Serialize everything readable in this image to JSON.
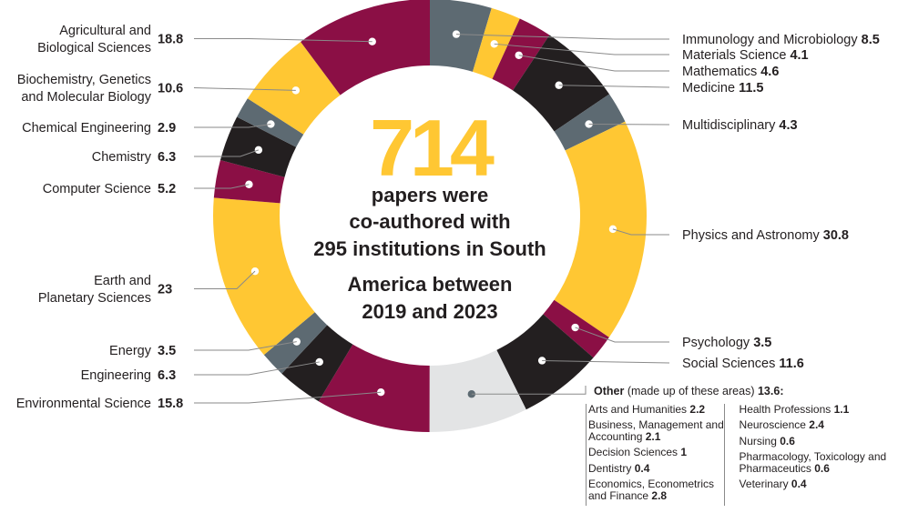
{
  "center": {
    "number": "714",
    "lines": [
      "papers were",
      "co-authored with",
      "295 institutions in South",
      "America between",
      "2019 and 2023"
    ]
  },
  "colors": {
    "maroon": "#8b0f45",
    "yellow": "#ffc733",
    "black": "#231f20",
    "gray": "#5d6a72",
    "light": "#e3e4e5"
  },
  "chart_data": {
    "type": "pie",
    "variant": "donut",
    "unit": "",
    "slices": [
      {
        "name": "Immunology and Microbiology",
        "value": 8.5,
        "color": "gray"
      },
      {
        "name": "Materials Science",
        "value": 4.1,
        "color": "yellow"
      },
      {
        "name": "Mathematics",
        "value": 4.6,
        "color": "maroon"
      },
      {
        "name": "Medicine",
        "value": 11.5,
        "color": "black"
      },
      {
        "name": "Multidisciplinary",
        "value": 4.3,
        "color": "gray"
      },
      {
        "name": "Physics and Astronomy",
        "value": 30.8,
        "color": "yellow"
      },
      {
        "name": "Psychology",
        "value": 3.5,
        "color": "maroon"
      },
      {
        "name": "Social Sciences",
        "value": 11.6,
        "color": "black"
      },
      {
        "name": "Other",
        "value": 13.6,
        "color": "light"
      },
      {
        "name": "Environmental Science",
        "value": 15.8,
        "color": "maroon"
      },
      {
        "name": "Engineering",
        "value": 6.3,
        "color": "black"
      },
      {
        "name": "Energy",
        "value": 3.5,
        "color": "gray"
      },
      {
        "name": "Earth and Planetary Sciences",
        "value": 23,
        "color": "yellow"
      },
      {
        "name": "Computer Science",
        "value": 5.2,
        "color": "maroon"
      },
      {
        "name": "Chemistry",
        "value": 6.3,
        "color": "black"
      },
      {
        "name": "Chemical Engineering",
        "value": 2.9,
        "color": "gray"
      },
      {
        "name": "Biochemistry, Genetics and Molecular Biology",
        "value": 10.6,
        "color": "yellow"
      },
      {
        "name": "Agricultural and Biological Sciences",
        "value": 18.8,
        "color": "maroon"
      }
    ]
  },
  "labels": {
    "Immunology and Microbiology": {
      "lines": [
        "Immunology and Microbiology"
      ],
      "value": "8.5"
    },
    "Materials Science": {
      "lines": [
        "Materials Science"
      ],
      "value": "4.1"
    },
    "Mathematics": {
      "lines": [
        "Mathematics"
      ],
      "value": "4.6"
    },
    "Medicine": {
      "lines": [
        "Medicine"
      ],
      "value": "11.5"
    },
    "Multidisciplinary": {
      "lines": [
        "Multidisciplinary"
      ],
      "value": "4.3"
    },
    "Physics and Astronomy": {
      "lines": [
        "Physics and Astronomy"
      ],
      "value": "30.8"
    },
    "Psychology": {
      "lines": [
        "Psychology"
      ],
      "value": "3.5"
    },
    "Social Sciences": {
      "lines": [
        "Social Sciences"
      ],
      "value": "11.6"
    },
    "Environmental Science": {
      "lines": [
        "Environmental Science"
      ],
      "value": "15.8"
    },
    "Engineering": {
      "lines": [
        "Engineering"
      ],
      "value": "6.3"
    },
    "Energy": {
      "lines": [
        "Energy"
      ],
      "value": "3.5"
    },
    "Earth and Planetary Sciences": {
      "lines": [
        "Earth and",
        "Planetary Sciences"
      ],
      "value": "23"
    },
    "Computer Science": {
      "lines": [
        "Computer Science"
      ],
      "value": "5.2"
    },
    "Chemistry": {
      "lines": [
        "Chemistry"
      ],
      "value": "6.3"
    },
    "Chemical Engineering": {
      "lines": [
        "Chemical Engineering"
      ],
      "value": "2.9"
    },
    "Biochemistry, Genetics and Molecular Biology": {
      "lines": [
        "Biochemistry, Genetics",
        "and Molecular Biology"
      ],
      "value": "10.6"
    },
    "Agricultural and Biological Sciences": {
      "lines": [
        "Agricultural and",
        "Biological Sciences"
      ],
      "value": "18.8"
    }
  },
  "other": {
    "title": "Other",
    "note": "(made up of these areas)",
    "value": "13.6:",
    "col1": [
      {
        "name": "Arts and Humanities",
        "value": "2.2"
      },
      {
        "name": "Business, Management and Accounting",
        "value": "2.1"
      },
      {
        "name": "Decision Sciences",
        "value": "1"
      },
      {
        "name": "Dentistry",
        "value": "0.4"
      },
      {
        "name": "Economics, Econometrics and Finance",
        "value": "2.8"
      }
    ],
    "col2": [
      {
        "name": "Health Professions",
        "value": "1.1"
      },
      {
        "name": "Neuroscience",
        "value": "2.4"
      },
      {
        "name": "Nursing",
        "value": "0.6"
      },
      {
        "name": "Pharmacology, Toxicology and Pharmaceutics",
        "value": "0.6"
      },
      {
        "name": "Veterinary",
        "value": "0.4"
      }
    ]
  }
}
